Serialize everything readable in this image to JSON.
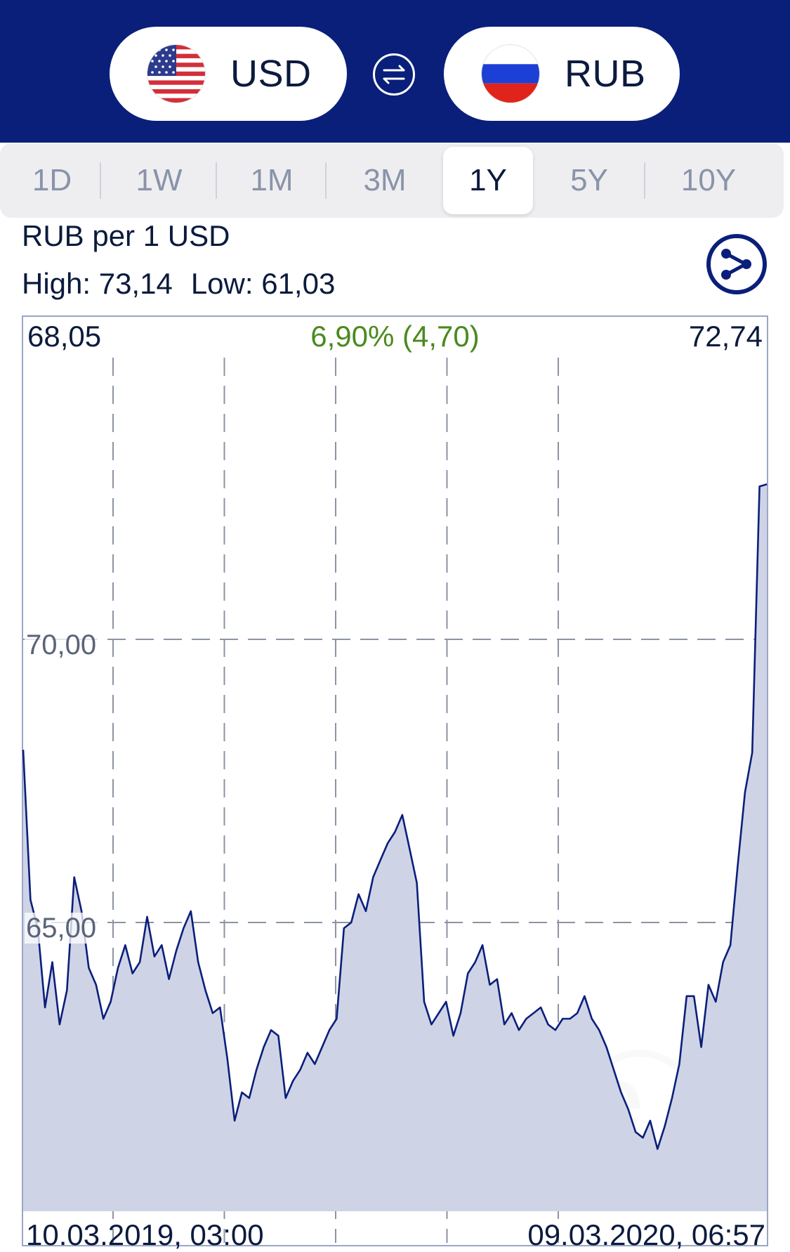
{
  "header": {
    "from_currency": {
      "code": "USD",
      "flag_icon": "us-flag-icon"
    },
    "to_currency": {
      "code": "RUB",
      "flag_icon": "ru-flag-icon"
    },
    "swap_icon": "swap-arrows-icon",
    "background_color": "#0a1f7a"
  },
  "tabs": [
    {
      "label": "1D",
      "active": false
    },
    {
      "label": "1W",
      "active": false
    },
    {
      "label": "1M",
      "active": false
    },
    {
      "label": "3M",
      "active": false
    },
    {
      "label": "1Y",
      "active": true
    },
    {
      "label": "5Y",
      "active": false
    },
    {
      "label": "10Y",
      "active": false
    }
  ],
  "info": {
    "rate_title": "RUB per 1 USD",
    "high": "High: 73,14",
    "low": "Low: 61,03",
    "share_icon": "share-icon"
  },
  "chart_labels": {
    "start_value": "68,05",
    "change": "6,90% (4,70)",
    "end_value": "72,74",
    "start_date": "10.03.2019, 03:00",
    "end_date": "09.03.2020, 06:57",
    "y_tick_70": "70,00",
    "y_tick_65": "65,00",
    "watermark": "xe"
  },
  "chart_data": {
    "type": "area",
    "x_start": "10.03.2019, 03:00",
    "x_end": "09.03.2020, 06:57",
    "ylim": [
      60,
      75
    ],
    "yticks": [
      65,
      70
    ],
    "grid": true,
    "line_color": "#0a1f7a",
    "fill_color": "#cfd3e6",
    "change_color": "#4a8a1e",
    "series": [
      {
        "values": [
          68.05,
          65.4,
          64.9,
          63.5,
          64.3,
          63.2,
          63.8,
          65.8,
          65.2,
          64.2,
          63.9,
          63.3,
          63.6,
          64.2,
          64.6,
          64.1,
          64.3,
          65.1,
          64.4,
          64.6,
          64.0,
          64.5,
          64.9,
          65.2,
          64.3,
          63.8,
          63.4,
          63.5,
          62.6,
          61.5,
          62.0,
          61.9,
          62.4,
          62.8,
          63.1,
          63.0,
          61.9,
          62.2,
          62.4,
          62.7,
          62.5,
          62.8,
          63.1,
          63.3,
          64.9,
          65.0,
          65.5,
          65.2,
          65.8,
          66.1,
          66.4,
          66.6,
          66.9,
          66.3,
          65.7,
          63.6,
          63.2,
          63.4,
          63.6,
          63.0,
          63.4,
          64.1,
          64.3,
          64.6,
          63.9,
          64.0,
          63.2,
          63.4,
          63.1,
          63.3,
          63.4,
          63.5,
          63.2,
          63.1,
          63.3,
          63.3,
          63.4,
          63.7,
          63.3,
          63.1,
          62.8,
          62.4,
          62.0,
          61.7,
          61.3,
          61.2,
          61.5,
          61.0,
          61.4,
          61.9,
          62.5,
          63.7,
          63.7,
          62.8,
          63.9,
          63.6,
          64.3,
          64.6,
          66.0,
          67.3,
          68.0,
          72.7,
          72.74
        ],
        "note": ""
      }
    ]
  }
}
